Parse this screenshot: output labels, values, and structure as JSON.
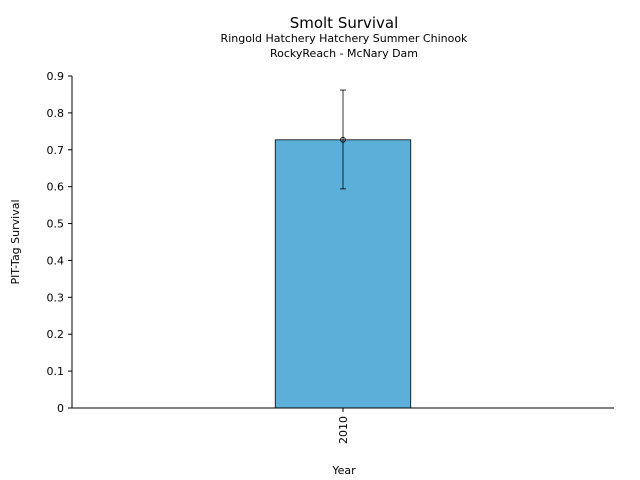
{
  "chart_data": {
    "type": "bar",
    "title": "Smolt Survival",
    "subtitle": [
      "Ringold Hatchery Hatchery Summer Chinook",
      "RockyReach - McNary Dam"
    ],
    "xlabel": "Year",
    "ylabel": "PIT-Tag Survival",
    "categories": [
      "2010"
    ],
    "values": [
      0.727
    ],
    "error_low": [
      0.594
    ],
    "error_high": [
      0.862
    ],
    "ylim": [
      0,
      0.9
    ],
    "yticks": [
      0,
      0.1,
      0.2,
      0.3,
      0.4,
      0.5,
      0.6,
      0.7,
      0.8,
      0.9
    ],
    "ytick_labels": [
      "0",
      "0.1",
      "0.2",
      "0.3",
      "0.4",
      "0.5",
      "0.6",
      "0.7",
      "0.8",
      "0.9"
    ],
    "grid": false,
    "bar_color": "#5bafd8"
  }
}
